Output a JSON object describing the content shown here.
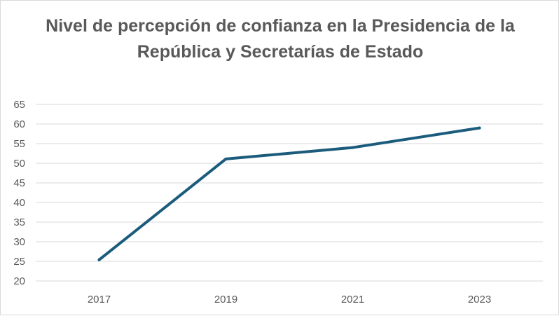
{
  "chart_data": {
    "type": "line",
    "title": "Nivel de percepción de confianza en la Presidencia de la República y Secretarías de Estado",
    "xlabel": "",
    "ylabel": "",
    "categories": [
      "2017",
      "2019",
      "2021",
      "2023"
    ],
    "series": [
      {
        "values": [
          25.4,
          51.1,
          54.0,
          59.0
        ],
        "color": "#1b5c7c"
      }
    ],
    "ylim": [
      20,
      65
    ],
    "yticks": [
      "20",
      "25",
      "30",
      "35",
      "40",
      "45",
      "50",
      "55",
      "60",
      "65"
    ],
    "grid": true,
    "legend": "none"
  }
}
